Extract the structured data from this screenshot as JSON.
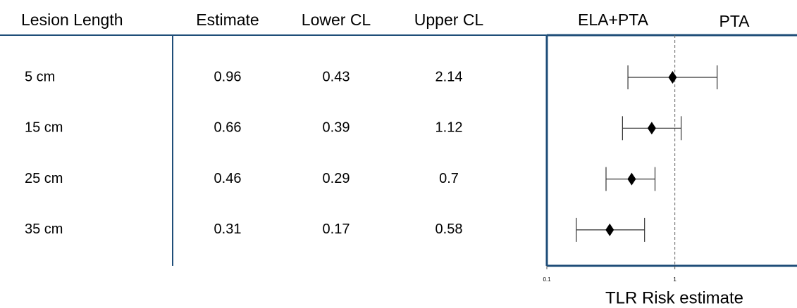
{
  "chart_data": {
    "type": "forest",
    "columns": [
      "Lesion Length",
      "Estimate",
      "Lower CL",
      "Upper CL"
    ],
    "categories": [
      "5 cm",
      "15 cm",
      "25 cm",
      "35 cm"
    ],
    "values": [
      0.96,
      0.66,
      0.46,
      0.31
    ],
    "lower": [
      0.43,
      0.39,
      0.29,
      0.17
    ],
    "upper": [
      2.14,
      1.12,
      0.7,
      0.58
    ],
    "left_label": "ELA+PTA",
    "right_label": "PTA",
    "xlabel": "TLR Risk estimate",
    "xscale": "log",
    "xlim": [
      0.1,
      9
    ],
    "xticks": [
      0.1,
      1
    ],
    "reference": 1,
    "color": "#000000",
    "frame_color": "#1f4e79"
  }
}
